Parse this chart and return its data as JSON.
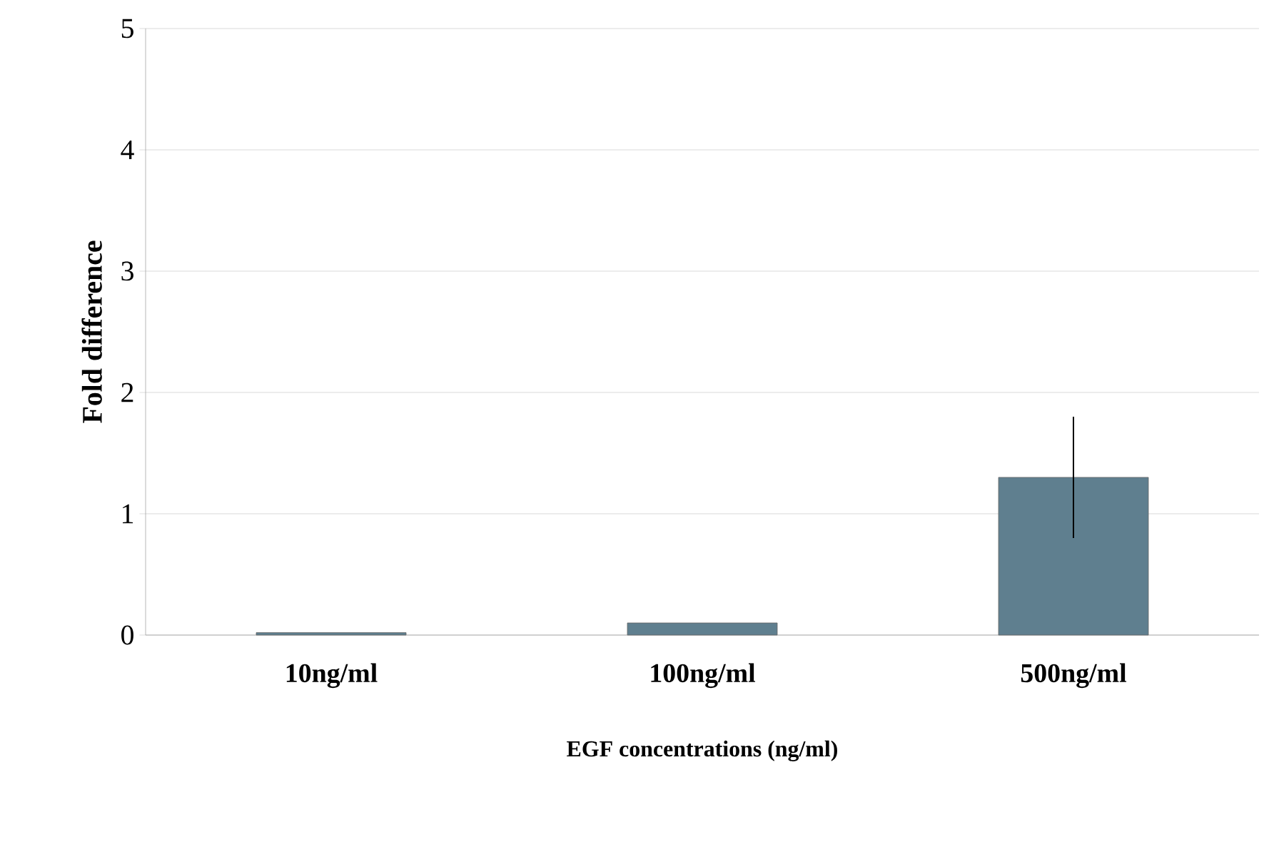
{
  "chart_data": {
    "type": "bar",
    "xlabel": "EGF concentrations (ng/ml)",
    "ylabel": "Fold difference",
    "categories": [
      "10ng/ml",
      "100ng/ml",
      "500ng/ml"
    ],
    "values": [
      0.02,
      0.1,
      1.3
    ],
    "errors": [
      null,
      null,
      0.5
    ],
    "color": "#5f7f8f",
    "ylim": [
      0,
      5
    ],
    "yticks": [
      0,
      1,
      2,
      3,
      4,
      5
    ],
    "grid": "y"
  }
}
